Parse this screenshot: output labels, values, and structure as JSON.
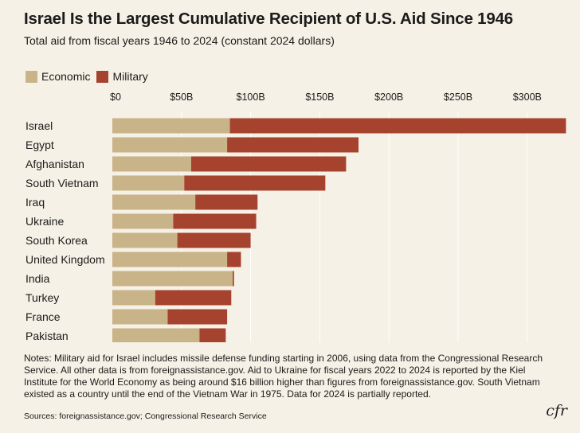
{
  "title": "Israel Is the Largest Cumulative Recipient of U.S. Aid Since 1946",
  "subtitle": "Total aid from fiscal years 1946 to 2024 (constant 2024 dollars)",
  "legend": {
    "economic": "Economic",
    "military": "Military"
  },
  "colors": {
    "economic": "#c9b388",
    "military": "#a6432f",
    "background": "#f6f1e6",
    "grid": "#ffffff"
  },
  "chart_data": {
    "type": "bar",
    "orientation": "horizontal",
    "stacked": true,
    "categories": [
      "Israel",
      "Egypt",
      "Afghanistan",
      "South Vietnam",
      "Iraq",
      "Ukraine",
      "South Korea",
      "United Kingdom",
      "India",
      "Turkey",
      "France",
      "Pakistan"
    ],
    "series": [
      {
        "name": "Economic",
        "values": [
          85,
          83,
          57,
          52,
          60,
          44,
          47,
          83,
          87,
          31,
          40,
          63
        ]
      },
      {
        "name": "Military",
        "values": [
          243,
          95,
          112,
          102,
          45,
          60,
          53,
          10,
          1,
          55,
          43,
          19
        ]
      }
    ],
    "xlim": [
      0,
      330
    ],
    "xticks": [
      "$0",
      "$50B",
      "$100B",
      "$150B",
      "$200B",
      "$250B",
      "$300B"
    ],
    "xtick_values": [
      0,
      50,
      100,
      150,
      200,
      250,
      300
    ],
    "grid": true,
    "legend_position": "top-left"
  },
  "notes": "Notes: Military aid for Israel includes missile defense funding starting in 2006, using data from the Congressional Research Service. All other data is from foreignassistance.gov. Aid to Ukraine for fiscal years 2022 to 2024 is reported by the Kiel Institute for the World Economy as being around $16 billion higher than figures from foreignassistance.gov. South Vietnam existed as a country until the end of the Vietnam War in 1975. Data for 2024 is partially reported.",
  "sources": "Sources: foreignassistance.gov; Congressional Research Service",
  "logo": "cfr"
}
